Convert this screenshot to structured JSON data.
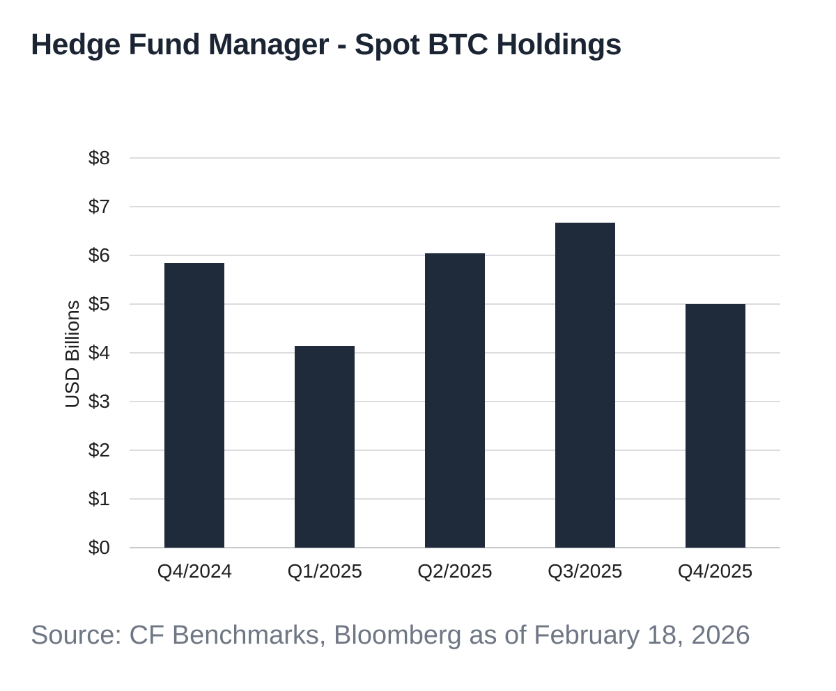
{
  "page": {
    "title": "Hedge Fund Manager - Spot BTC Holdings",
    "source_note": "Source: CF Benchmarks, Bloomberg as of February 18, 2026"
  },
  "chart_data": {
    "type": "bar",
    "title": "Hedge Fund Manager - Spot BTC Holdings",
    "categories": [
      "Q4/2024",
      "Q1/2025",
      "Q2/2025",
      "Q3/2025",
      "Q4/2025"
    ],
    "values": [
      5.85,
      4.15,
      6.05,
      6.67,
      5.0
    ],
    "xlabel": "",
    "ylabel": "USD Billions",
    "ylim": [
      0,
      8
    ],
    "ytick_step": 1,
    "ytick_labels": [
      "$0",
      "$1",
      "$2",
      "$3",
      "$4",
      "$5",
      "$6",
      "$7",
      "$8"
    ],
    "grid": true,
    "legend": "none",
    "colors": {
      "bar": "#1f2a3a",
      "gridline": "#dcdcde",
      "baseline": "#c9cacd",
      "title_text": "#1b2433",
      "tick_text": "#1f1f1f",
      "source_text": "#6f7684"
    }
  }
}
